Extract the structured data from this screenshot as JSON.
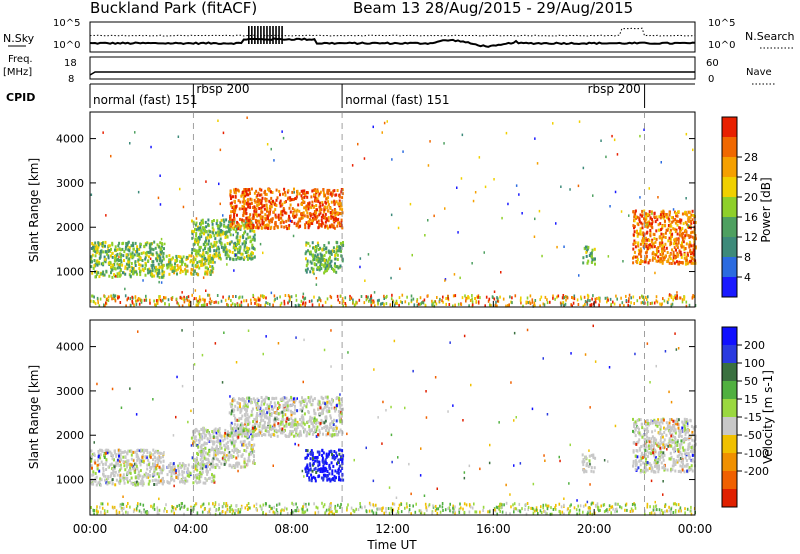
{
  "header": {
    "station": "Buckland Park (fitACF)",
    "beam_info": "Beam 13 28/Aug/2015 - 29/Aug/2015"
  },
  "noise_panel": {
    "left_label": "N.Sky",
    "right_label": "N.Search",
    "ticks_left": [
      "10^5",
      "10^0"
    ],
    "ticks_right": [
      "10^5",
      "10^0"
    ]
  },
  "freq_panel": {
    "left_label_line1": "Freq.",
    "left_label_line2": "[MHz]",
    "right_label": "Nave",
    "ticks_left": [
      "18",
      "8"
    ],
    "ticks_right": [
      "60",
      "0"
    ]
  },
  "cpid_panel": {
    "label": "CPID",
    "modes": [
      {
        "name": "normal (fast) 151",
        "start_h": 0,
        "end_h": 4.1
      },
      {
        "name": "rbsp 200",
        "start_h": 4.1,
        "end_h": 10.0
      },
      {
        "name": "normal (fast) 151",
        "start_h": 10.0,
        "end_h": 22.0
      },
      {
        "name": "rbsp 200",
        "start_h": 22.0,
        "end_h": 24.0
      }
    ]
  },
  "chart_data": [
    {
      "type": "heatmap",
      "name": "power",
      "ylabel": "Slant Range [km]",
      "y_ticks": [
        "1000",
        "2000",
        "3000",
        "4000"
      ],
      "ylim": [
        200,
        4600
      ],
      "xlim_hours": [
        0,
        24
      ],
      "colorbar": {
        "label": "Power [dB]",
        "ticks": [
          "4",
          "8",
          "12",
          "16",
          "20",
          "24",
          "28"
        ],
        "colors": [
          "#1a1aff",
          "#2b6be0",
          "#3d8a7a",
          "#4ea060",
          "#8ecf2a",
          "#f0d000",
          "#f5a000",
          "#f06800",
          "#e82000"
        ]
      },
      "regions": [
        {
          "t0": 0.0,
          "t1": 2.9,
          "r0": 900,
          "r1": 1700,
          "level": 0.45
        },
        {
          "t0": 3.0,
          "t1": 4.9,
          "r0": 950,
          "r1": 1400,
          "level": 0.55
        },
        {
          "t0": 4.0,
          "t1": 6.5,
          "r0": 1300,
          "r1": 2200,
          "level": 0.45
        },
        {
          "t0": 5.5,
          "t1": 10.0,
          "r0": 2000,
          "r1": 2900,
          "level": 0.85
        },
        {
          "t0": 8.5,
          "t1": 10.0,
          "r0": 1000,
          "r1": 1700,
          "level": 0.4
        },
        {
          "t0": 19.5,
          "t1": 20.0,
          "r0": 1200,
          "r1": 1600,
          "level": 0.4
        },
        {
          "t0": 21.5,
          "t1": 24.0,
          "r0": 1200,
          "r1": 2400,
          "level": 0.8
        }
      ]
    },
    {
      "type": "heatmap",
      "name": "velocity",
      "ylabel": "Slant Range [km]",
      "y_ticks": [
        "1000",
        "2000",
        "3000",
        "4000"
      ],
      "ylim": [
        200,
        4600
      ],
      "xlim_hours": [
        0,
        24
      ],
      "colorbar": {
        "label": "Velocity [m s-1]",
        "ticks": [
          "200",
          "100",
          "50",
          "15",
          "-15",
          "-50",
          "-100",
          "-200"
        ],
        "colors": [
          "#1010ff",
          "#2a3ae0",
          "#3a7040",
          "#50b040",
          "#9ad840",
          "#c8c8c8",
          "#f0c000",
          "#f09000",
          "#f06000",
          "#e02000"
        ]
      },
      "regions": [
        {
          "t0": 0.0,
          "t1": 2.9,
          "r0": 900,
          "r1": 1700,
          "level": 0.5
        },
        {
          "t0": 3.0,
          "t1": 4.9,
          "r0": 950,
          "r1": 1400,
          "level": 0.5
        },
        {
          "t0": 4.0,
          "t1": 6.5,
          "r0": 1300,
          "r1": 2200,
          "level": 0.5
        },
        {
          "t0": 5.5,
          "t1": 10.0,
          "r0": 2000,
          "r1": 2900,
          "level": 0.5
        },
        {
          "t0": 8.5,
          "t1": 10.0,
          "r0": 1000,
          "r1": 1700,
          "level": 0.05
        },
        {
          "t0": 19.5,
          "t1": 20.0,
          "r0": 1200,
          "r1": 1600,
          "level": 0.5
        },
        {
          "t0": 21.5,
          "t1": 24.0,
          "r0": 1200,
          "r1": 2400,
          "level": 0.5
        }
      ]
    }
  ],
  "x_axis": {
    "label": "Time UT",
    "ticks": [
      "00:00",
      "04:00",
      "08:00",
      "12:00",
      "16:00",
      "20:00",
      "00:00"
    ]
  }
}
